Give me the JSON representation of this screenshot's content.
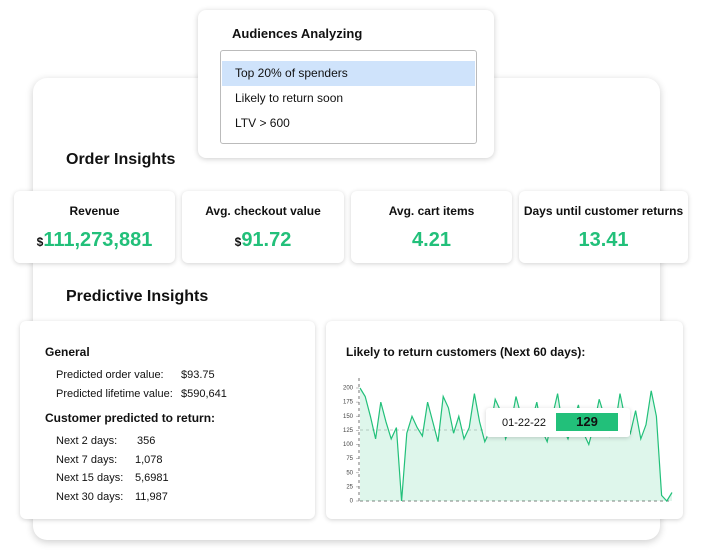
{
  "audiences": {
    "title": "Audiences Analyzing",
    "options": [
      "Top 20% of spenders",
      "Likely to return soon",
      "LTV > 600"
    ],
    "selected": 0
  },
  "order_insights": {
    "title": "Order Insights",
    "cards": [
      {
        "label": "Revenue",
        "prefix": "$",
        "value": "111,273,881"
      },
      {
        "label": "Avg. checkout value",
        "prefix": "$",
        "value": "91.72"
      },
      {
        "label": "Avg. cart items",
        "value": "4.21"
      },
      {
        "label": "Days until customer returns",
        "value": "13.41"
      }
    ]
  },
  "predictive_insights": {
    "title": "Predictive Insights",
    "general": {
      "heading": "General",
      "rows": [
        {
          "label": "Predicted order value:",
          "value": "$93.75"
        },
        {
          "label": "Predicted lifetime value:",
          "value": "$590,641"
        }
      ],
      "return_heading": "Customer predicted to return:",
      "return_rows": [
        {
          "label": "Next 2 days:",
          "value": "356"
        },
        {
          "label": "Next 7 days:",
          "value": "1,078"
        },
        {
          "label": "Next 15 days:",
          "value": "5,6981"
        },
        {
          "label": "Next 30 days:",
          "value": "11,987"
        }
      ]
    }
  },
  "chart_data": {
    "type": "area",
    "title": "Likely to return customers (Next 60 days):",
    "color": "#22c07a",
    "values": [
      200,
      185,
      150,
      110,
      175,
      140,
      110,
      130,
      0,
      120,
      150,
      130,
      115,
      175,
      140,
      105,
      185,
      165,
      120,
      150,
      110,
      130,
      190,
      140,
      105,
      125,
      180,
      160,
      110,
      135,
      185,
      150,
      120,
      140,
      175,
      125,
      105,
      150,
      190,
      130,
      110,
      140,
      170,
      120,
      100,
      135,
      180,
      150,
      115,
      130,
      190,
      145,
      120,
      160,
      110,
      135,
      195,
      150,
      10,
      0,
      15
    ],
    "ylim": [
      0,
      200
    ],
    "yticks": [
      0,
      25,
      50,
      75,
      100,
      125,
      150,
      175,
      200
    ],
    "tooltip": {
      "date": "01-22-22",
      "value": 129
    }
  }
}
